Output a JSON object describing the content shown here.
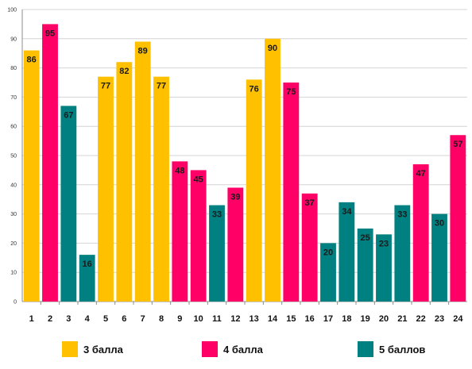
{
  "chart_data": {
    "type": "bar",
    "title": "",
    "xlabel": "",
    "ylabel": "",
    "ylim": [
      0,
      100
    ],
    "yticks": [
      0,
      10,
      20,
      30,
      40,
      50,
      60,
      70,
      80,
      90,
      100
    ],
    "grid": true,
    "legend_position": "bottom",
    "categories": [
      "1",
      "2",
      "3",
      "4",
      "5",
      "6",
      "7",
      "8",
      "9",
      "10",
      "11",
      "12",
      "13",
      "14",
      "15",
      "16",
      "17",
      "18",
      "19",
      "20",
      "21",
      "22",
      "23",
      "24"
    ],
    "values": [
      86,
      95,
      67,
      16,
      77,
      82,
      89,
      77,
      48,
      45,
      33,
      39,
      76,
      90,
      75,
      37,
      20,
      34,
      25,
      23,
      33,
      47,
      30,
      57
    ],
    "groups": [
      "3",
      "4",
      "5",
      "5",
      "3",
      "3",
      "3",
      "3",
      "4",
      "4",
      "5",
      "4",
      "3",
      "3",
      "4",
      "4",
      "5",
      "5",
      "5",
      "5",
      "5",
      "4",
      "5",
      "4"
    ],
    "legend": [
      {
        "key": "3",
        "label": "3 балла",
        "color": "#FFC000"
      },
      {
        "key": "4",
        "label": "4 балла",
        "color": "#FF0066"
      },
      {
        "key": "5",
        "label": "5 баллов",
        "color": "#008080"
      }
    ]
  }
}
